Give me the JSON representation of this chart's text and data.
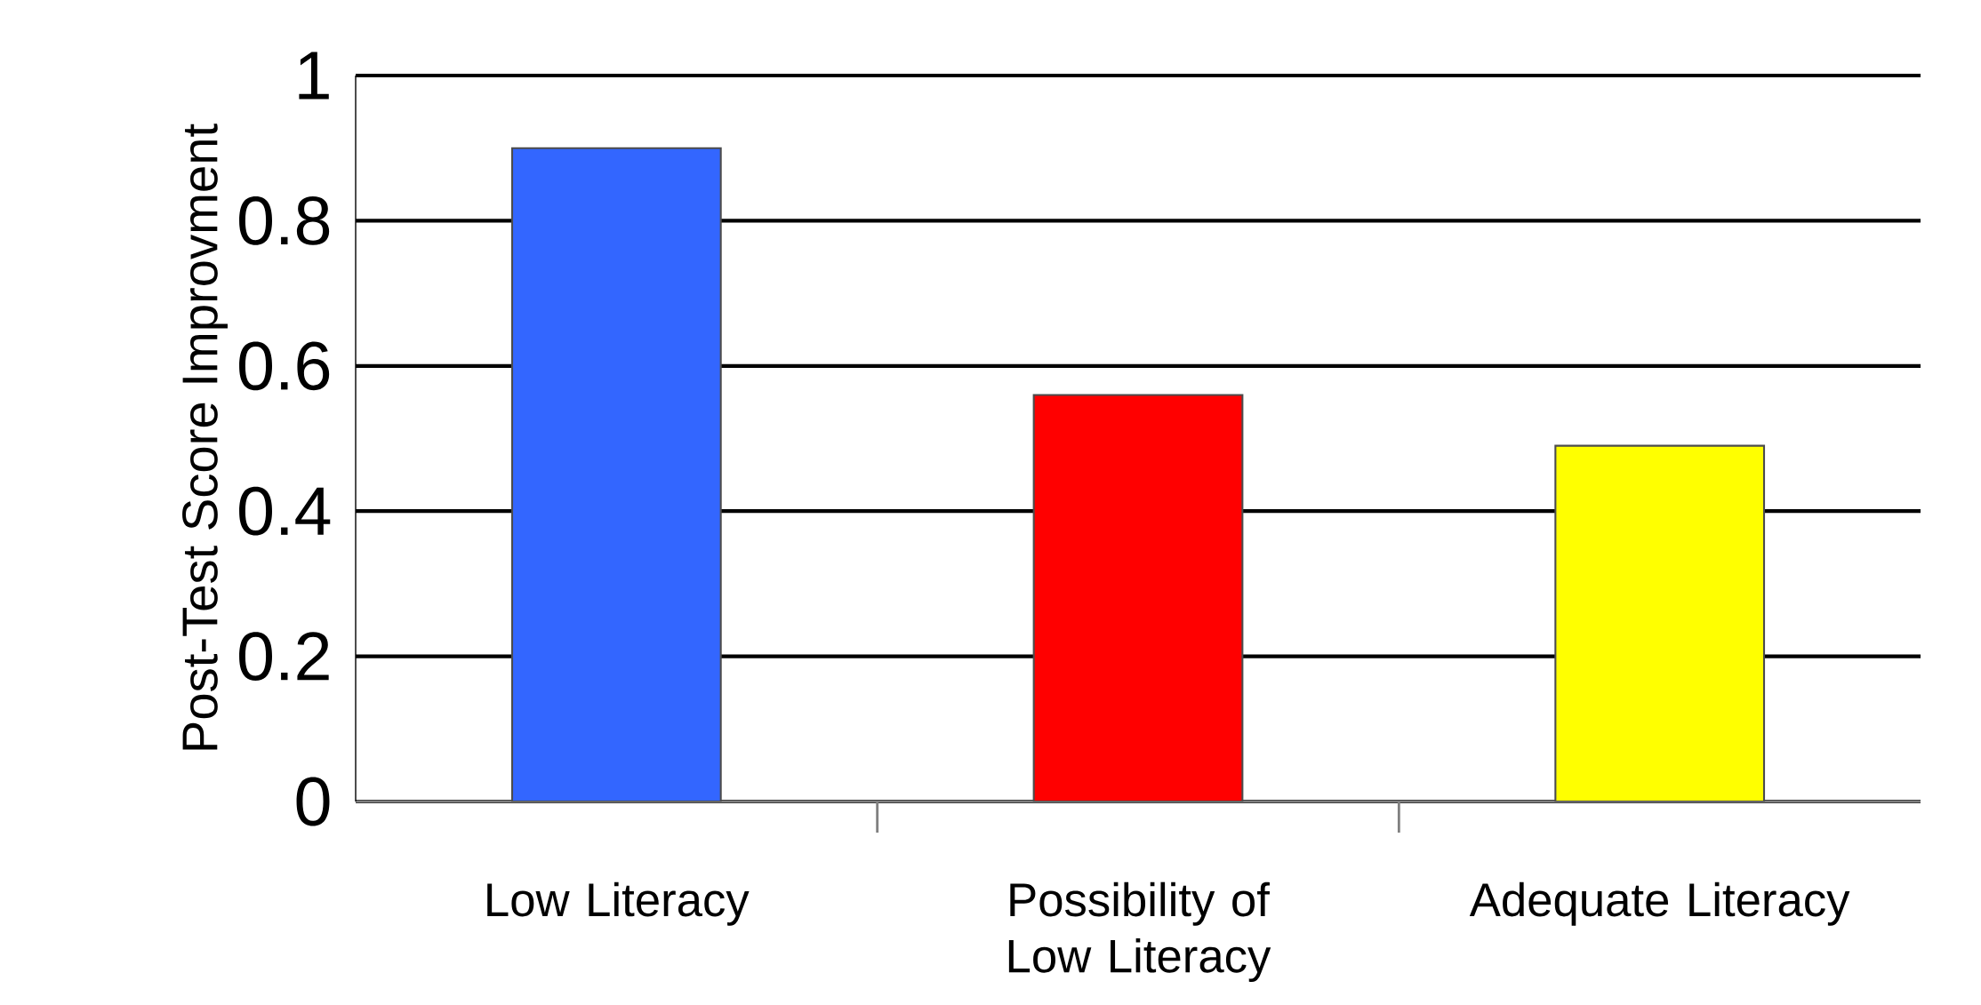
{
  "chart_data": {
    "type": "bar",
    "ylabel": "Post-Test Score Improvment",
    "categories": [
      "Low Literacy",
      "Possibility of Low Literacy",
      "Adequate Literacy"
    ],
    "values": [
      0.9,
      0.56,
      0.49
    ],
    "colors": [
      "#3366ff",
      "#ff0000",
      "#ffff00"
    ],
    "ylim": [
      0,
      1
    ],
    "yticks": [
      0,
      0.2,
      0.4,
      0.6,
      0.8,
      1
    ],
    "grid": "y"
  }
}
